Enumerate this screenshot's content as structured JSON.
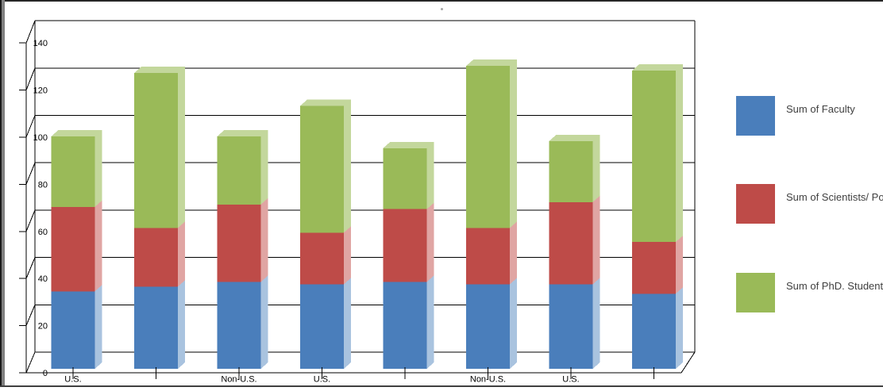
{
  "window": {
    "background": "#ffffff",
    "artifact_dot": "·"
  },
  "chart_data": {
    "type": "bar",
    "subtype": "3d-stacked-column",
    "title": "",
    "categories": [
      "U.S.",
      "",
      "Non-U.S.",
      "U.S.",
      "",
      "Non-U.S.",
      "U.S.",
      ""
    ],
    "series": [
      {
        "name": "Sum of  Faculty",
        "color": "#4A7EBB",
        "side_color": "#A9C3DF",
        "values": [
          33,
          35,
          37,
          36,
          37,
          36,
          36,
          32
        ]
      },
      {
        "name": "Sum of  Scientists/ Po",
        "color": "#BE4B48",
        "side_color": "#E0A5A3",
        "values": [
          36,
          25,
          33,
          22,
          31,
          24,
          35,
          22
        ]
      },
      {
        "name": "Sum of  PhD. Student",
        "color": "#9ABA58",
        "side_color": "#C3D79C",
        "values": [
          30,
          66,
          29,
          54,
          26,
          69,
          26,
          73
        ]
      }
    ],
    "ylim": [
      0,
      140
    ],
    "y_tick_interval": 20,
    "y_tick_labels": [
      "140",
      "120",
      "100",
      "80",
      "60",
      "40",
      "20",
      "0"
    ],
    "grid": true,
    "gridline_color": "#000000",
    "axis_color": "#000000",
    "legend_position": "right"
  }
}
